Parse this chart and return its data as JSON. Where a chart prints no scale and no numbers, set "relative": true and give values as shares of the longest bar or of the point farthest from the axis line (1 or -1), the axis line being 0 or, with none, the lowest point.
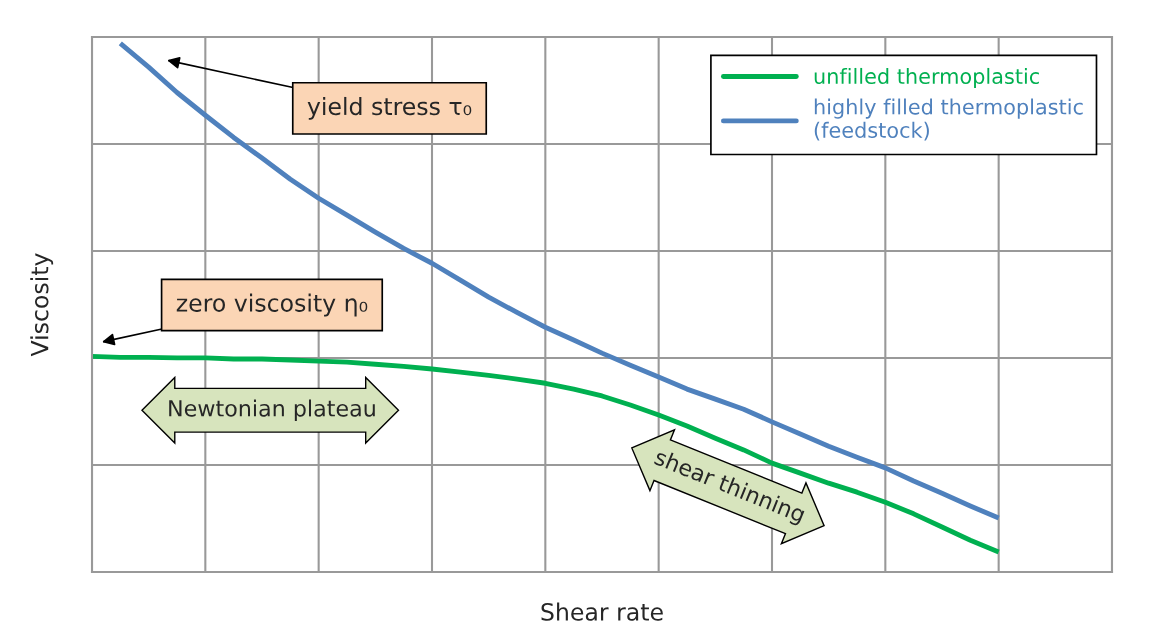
{
  "chart_data": {
    "type": "line",
    "relative": true,
    "xlabel": "Shear rate",
    "ylabel": "Viscosity",
    "tick_labels": false,
    "grid": true,
    "legend": "top right",
    "line_style": "solid",
    "marker": "none",
    "categories": [
      null,
      null,
      null,
      null,
      null,
      null,
      null,
      null,
      null,
      null,
      null,
      null,
      null,
      null,
      null,
      null,
      null,
      null,
      null,
      null,
      null,
      null,
      null,
      null,
      null,
      null,
      null,
      null,
      null,
      null,
      null,
      null,
      null,
      null,
      null,
      null,
      null
    ],
    "series": [
      {
        "name": "unfilled thermoplastic",
        "color": "#00b050",
        "values": [
          0.408,
          0.406,
          0.406,
          0.405,
          0.405,
          0.403,
          0.403,
          0.401,
          0.399,
          0.397,
          0.393,
          0.389,
          0.384,
          0.378,
          0.372,
          0.365,
          0.357,
          0.346,
          0.333,
          0.316,
          0.297,
          0.276,
          0.253,
          0.231,
          0.206,
          0.187,
          0.168,
          0.151,
          0.132,
          0.11,
          0.085,
          0.06,
          0.038,
          null,
          null,
          null,
          null
        ]
      },
      {
        "name": "highly filled thermoplastic\n(feedstock)",
        "color": "#4f81bd",
        "values": [
          null,
          1.0,
          0.955,
          0.907,
          0.864,
          0.822,
          0.783,
          0.743,
          0.707,
          0.675,
          0.643,
          0.612,
          0.584,
          0.552,
          0.52,
          0.491,
          0.463,
          0.439,
          0.414,
          0.391,
          0.369,
          0.346,
          0.327,
          0.308,
          0.284,
          0.261,
          0.238,
          0.217,
          0.197,
          0.172,
          0.149,
          0.125,
          0.102,
          null,
          null,
          null,
          null
        ]
      }
    ],
    "annotations": [
      "yield stress τ₀",
      "zero viscosity η₀",
      "Newtonian plateau",
      "shear thinning"
    ]
  }
}
